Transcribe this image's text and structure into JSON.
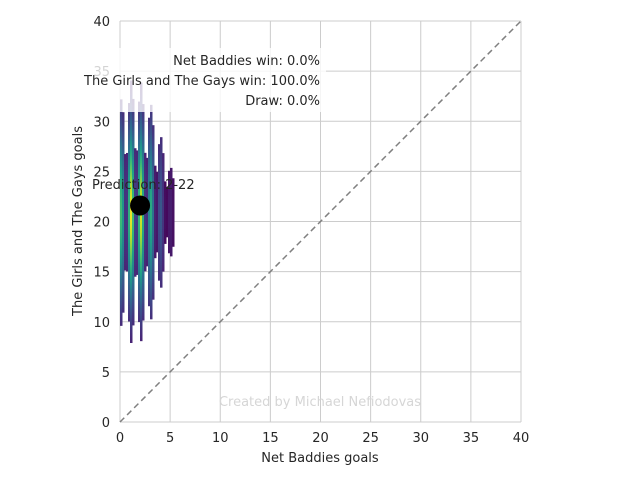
{
  "chart_data": {
    "type": "heatmap",
    "xlabel": "Net Baddies goals",
    "ylabel": "The Girls and The Gays goals",
    "xlim": [
      0,
      40
    ],
    "ylim": [
      0,
      40
    ],
    "x_ticks": [
      0,
      5,
      10,
      15,
      20,
      25,
      30,
      35,
      40
    ],
    "y_ticks": [
      0,
      5,
      10,
      15,
      20,
      25,
      30,
      35,
      40
    ],
    "grid": true,
    "colormap": "viridis",
    "distribution": {
      "x_range": [
        0,
        6.3
      ],
      "y_range": [
        9,
        35.5
      ],
      "x_peak": 1.5,
      "y_peak": 21
    },
    "prediction_point": {
      "x": 2,
      "y": 21.6,
      "color": "#000000"
    },
    "prediction_label": "Prediction: 2-22",
    "diagonal_line": {
      "from": [
        0,
        0
      ],
      "to": [
        40,
        40
      ],
      "style": "dashed",
      "color": "#808080"
    },
    "win_probabilities": [
      "Net Baddies win: 0.0%",
      "The Girls and The Gays win: 100.0%",
      "Draw: 0.0%"
    ],
    "watermark": "Created by Michael Nefiodovas"
  }
}
